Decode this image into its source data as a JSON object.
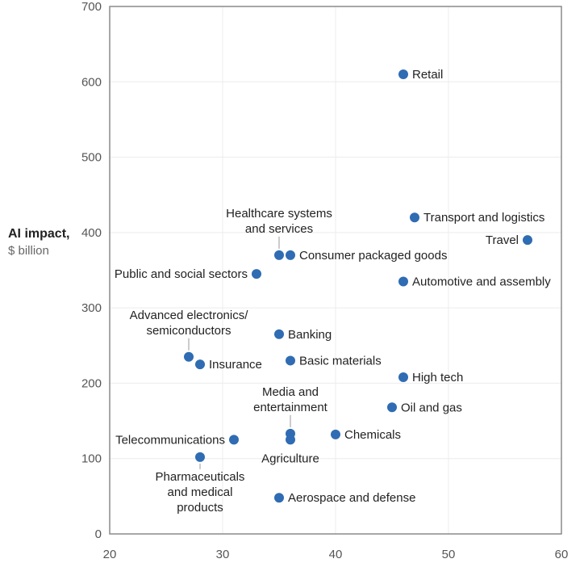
{
  "chart_data": {
    "type": "scatter",
    "title": "",
    "xlabel": "",
    "ylabel": "AI impact,",
    "ylabel_unit": "$ billion",
    "xlim": [
      20,
      60
    ],
    "ylim": [
      0,
      700
    ],
    "xticks": [
      20,
      30,
      40,
      50,
      60
    ],
    "yticks": [
      0,
      100,
      200,
      300,
      400,
      500,
      600,
      700
    ],
    "grid": true,
    "point_color": "#2f6cb3",
    "points": [
      {
        "label": "Retail",
        "x": 46,
        "y": 610,
        "anchor": "right"
      },
      {
        "label": "Transport and logistics",
        "x": 47,
        "y": 420,
        "anchor": "right"
      },
      {
        "label": "Travel",
        "x": 57,
        "y": 390,
        "anchor": "left"
      },
      {
        "label": "Healthcare systems\nand services",
        "x": 35,
        "y": 370,
        "anchor": "above-leader"
      },
      {
        "label": "Consumer packaged goods",
        "x": 36,
        "y": 370,
        "anchor": "right"
      },
      {
        "label": "Public and social sectors",
        "x": 33,
        "y": 345,
        "anchor": "left"
      },
      {
        "label": "Automotive and assembly",
        "x": 46,
        "y": 335,
        "anchor": "right"
      },
      {
        "label": "Banking",
        "x": 35,
        "y": 265,
        "anchor": "right"
      },
      {
        "label": "Advanced electronics/\nsemiconductors",
        "x": 27,
        "y": 235,
        "anchor": "above-leader"
      },
      {
        "label": "Insurance",
        "x": 28,
        "y": 225,
        "anchor": "right"
      },
      {
        "label": "Basic materials",
        "x": 36,
        "y": 230,
        "anchor": "right"
      },
      {
        "label": "High tech",
        "x": 46,
        "y": 208,
        "anchor": "right"
      },
      {
        "label": "Oil and gas",
        "x": 45,
        "y": 168,
        "anchor": "right"
      },
      {
        "label": "Media and\nentertainment",
        "x": 36,
        "y": 133,
        "anchor": "above-leader"
      },
      {
        "label": "Chemicals",
        "x": 40,
        "y": 132,
        "anchor": "right"
      },
      {
        "label": "Agriculture",
        "x": 36,
        "y": 125,
        "anchor": "below"
      },
      {
        "label": "Telecommunications",
        "x": 31,
        "y": 125,
        "anchor": "left"
      },
      {
        "label": "Pharmaceuticals\nand medical\nproducts",
        "x": 28,
        "y": 102,
        "anchor": "below-leader"
      },
      {
        "label": "Aerospace and defense",
        "x": 35,
        "y": 48,
        "anchor": "right"
      }
    ]
  }
}
